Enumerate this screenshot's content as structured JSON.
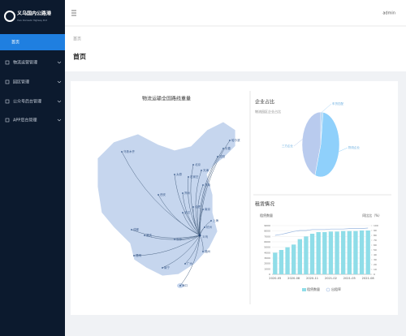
{
  "brand": {
    "title": "义乌国内公路港",
    "subtitle": "Yiwu Domestic Highway Port"
  },
  "menu": [
    "首页",
    "物流运营管理",
    "园区管理",
    "公众号后台管理",
    "APP后台管理"
  ],
  "user": "admin",
  "breadcrumb": "首页",
  "page_title": "首页",
  "map": {
    "title": "物流运输全国路线重量",
    "origin": "义乌",
    "cities": [
      "哈尔滨",
      "长春",
      "沈阳",
      "北京",
      "天津",
      "石家庄",
      "太原",
      "济南",
      "郑州",
      "西安",
      "乌鲁木齐",
      "成都",
      "重庆",
      "武汉",
      "长沙",
      "合肥",
      "南京",
      "上海",
      "杭州",
      "福州",
      "广州",
      "南宁",
      "昆明",
      "海口"
    ]
  },
  "chart_data": [
    {
      "type": "pie",
      "title": "企业占比",
      "subtitle": "物流园区企业占比",
      "categories": [
        "车货匹配",
        "物流企业",
        "三方企业"
      ],
      "values": [
        2,
        53,
        45
      ],
      "colors": [
        "#a9d4f5",
        "#8fd0fb",
        "#b9cbee"
      ]
    },
    {
      "type": "bar",
      "title": "租赁情况",
      "y_label": "租赁数量",
      "y2_label": "同比比（%）",
      "x": [
        "2020-05",
        "2020-06",
        "2020-07",
        "2020-08",
        "2020-09",
        "2020-10",
        "2020-11",
        "2020-12",
        "2021-01",
        "2021-02",
        "2021-03",
        "2021-04",
        "2021-05",
        "2021-06",
        "2021-07",
        "2021-08"
      ],
      "xtick_labels": [
        "2020-05",
        null,
        null,
        "2020-08",
        null,
        null,
        "2020-11",
        null,
        null,
        "2021-02",
        null,
        null,
        "2021-05",
        null,
        null,
        "2021-08"
      ],
      "ylim": [
        0,
        9000
      ],
      "yticks": [
        0,
        1000,
        2000,
        3000,
        4000,
        5000,
        6000,
        7000,
        8000,
        9000
      ],
      "y2lim": [
        0,
        100
      ],
      "y2ticks": [
        0,
        10,
        20,
        30,
        40,
        50,
        60,
        70,
        80,
        90,
        100
      ],
      "series": [
        {
          "name": "租赁数量",
          "color": "#8fdde8",
          "values": [
            4000,
            4500,
            5000,
            5500,
            6500,
            7000,
            7500,
            7800,
            7800,
            7900,
            7900,
            8000,
            8000,
            8000,
            8100,
            8100
          ]
        },
        {
          "name": "出租率",
          "color": "#9ab7e0",
          "axis": "y2",
          "values": [
            80,
            82,
            85,
            88,
            90,
            90,
            92,
            92,
            92,
            93,
            93,
            93,
            94,
            94,
            94,
            95
          ]
        }
      ]
    }
  ]
}
